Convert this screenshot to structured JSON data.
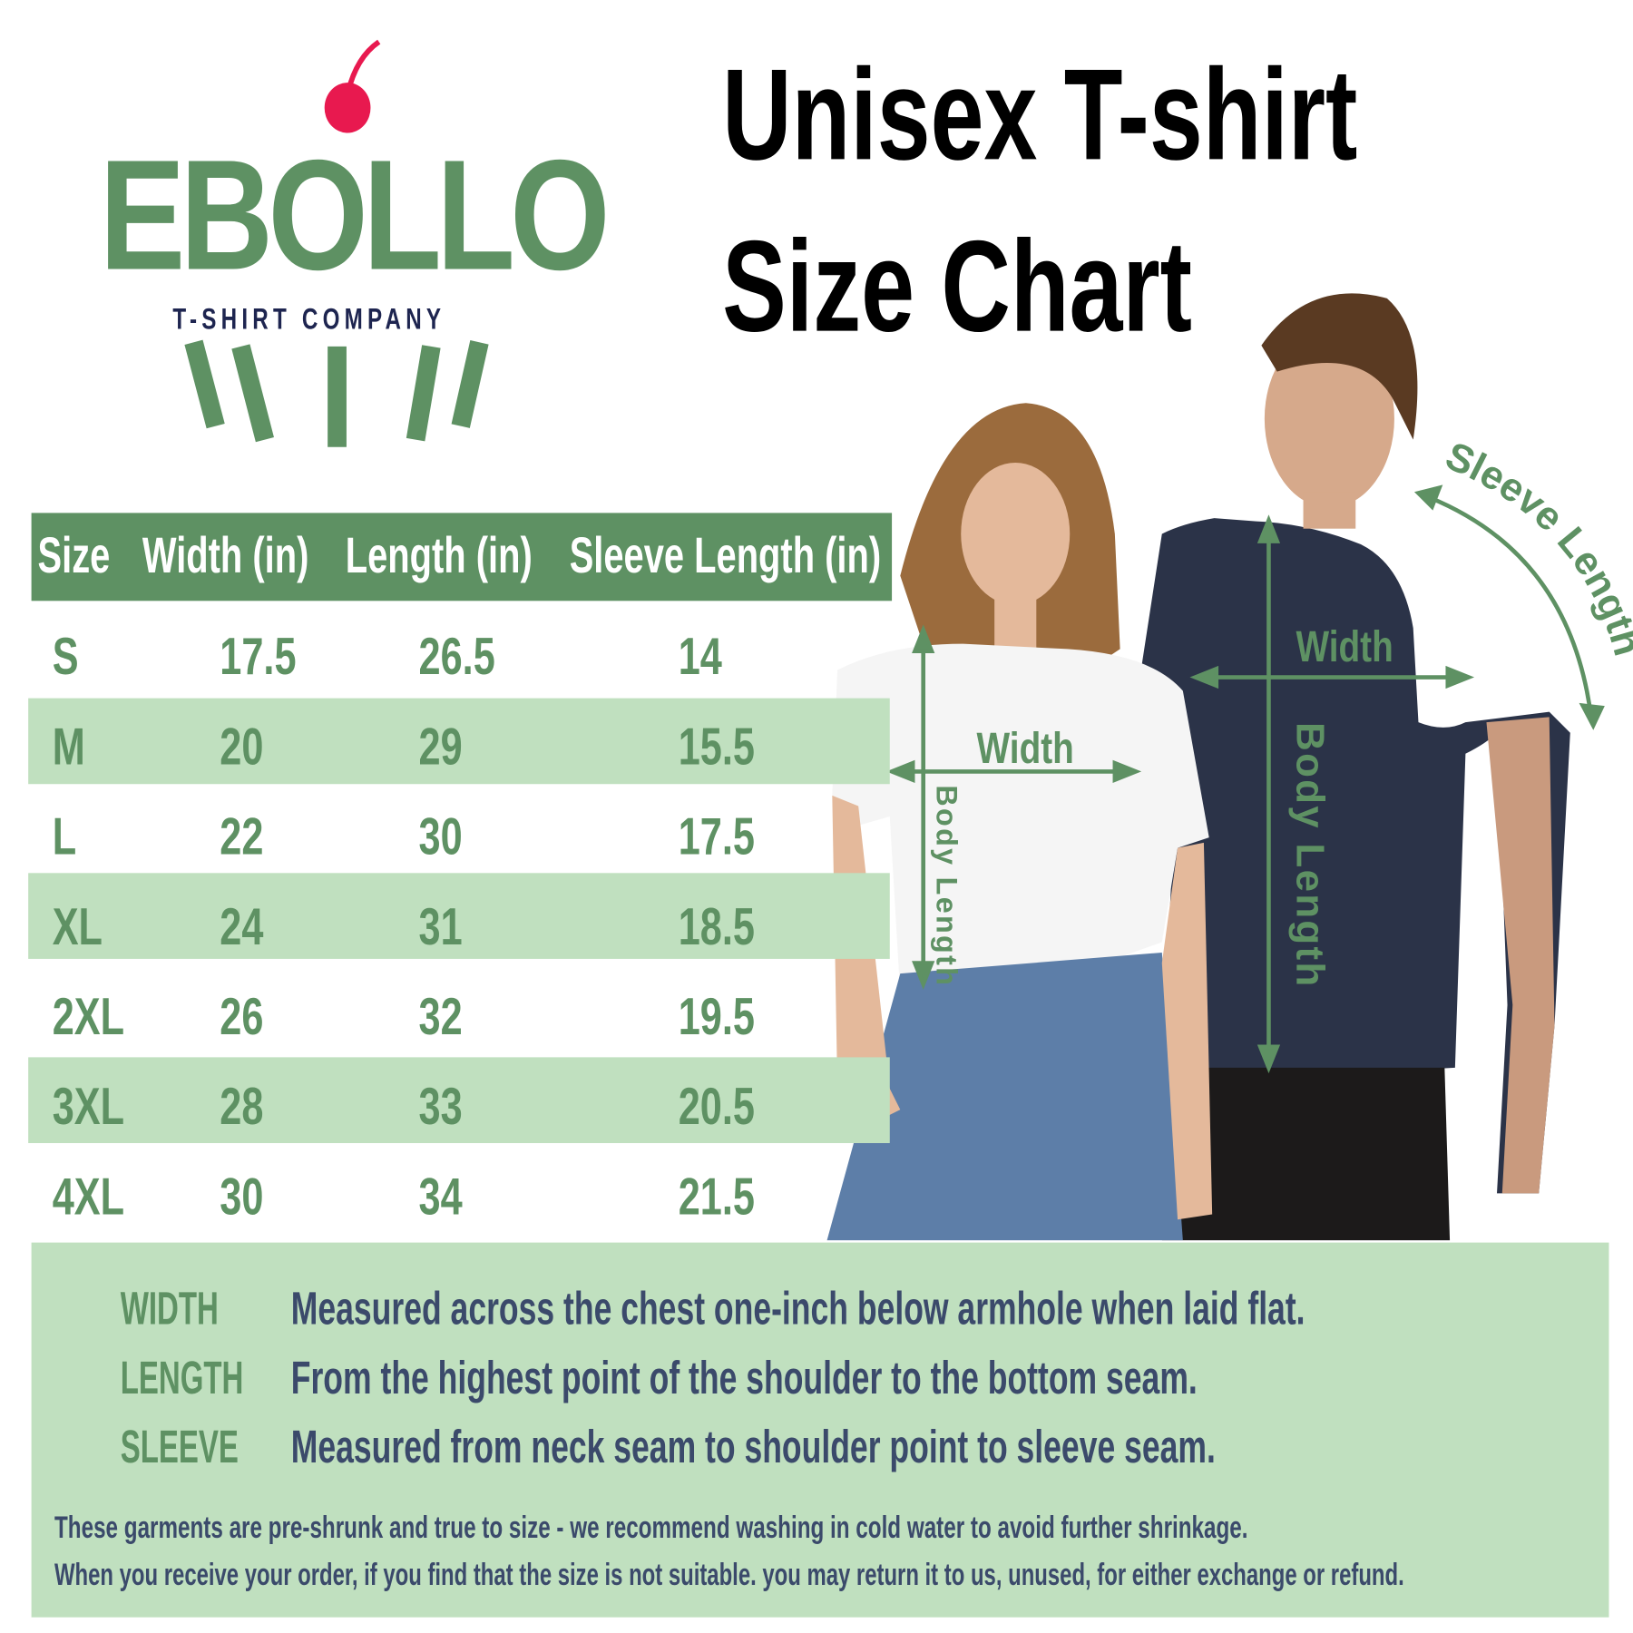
{
  "logo": {
    "brand": "EBOLLO",
    "tagline": "T-SHIRT COMPANY"
  },
  "colors": {
    "green": "#5e9163",
    "light_green": "#c0e0bf",
    "navy_text": "#3b4a6b",
    "cherry": "#e8194f"
  },
  "title": {
    "line1": "Unisex T-shirt",
    "line2": "Size Chart"
  },
  "table": {
    "headers": [
      "Size",
      "Width (in)",
      "Length (in)",
      "Sleeve Length (in)"
    ],
    "rows": [
      [
        "S",
        "17.5",
        "26.5",
        "14"
      ],
      [
        "M",
        "20",
        "29",
        "15.5"
      ],
      [
        "L",
        "22",
        "30",
        "17.5"
      ],
      [
        "XL",
        "24",
        "31",
        "18.5"
      ],
      [
        "2XL",
        "26",
        "32",
        "19.5"
      ],
      [
        "3XL",
        "28",
        "33",
        "20.5"
      ],
      [
        "4XL",
        "30",
        "34",
        "21.5"
      ]
    ]
  },
  "annotations": {
    "width": "Width",
    "body_length": "Body Length",
    "sleeve_length": "Sleeve Length"
  },
  "definitions": [
    {
      "label": "WIDTH",
      "text": "Measured across the chest one-inch below armhole when laid flat."
    },
    {
      "label": "LENGTH",
      "text": "From the highest point of the shoulder to the bottom seam."
    },
    {
      "label": "SLEEVE",
      "text": "Measured from neck seam to shoulder point to sleeve seam."
    }
  ],
  "notes": [
    "These garments are pre-shrunk and true to size - we recommend washing in cold water to avoid further shrinkage.",
    "When you receive your order, if you find that the size is not suitable. you may return it to us, unused, for either exchange or refund."
  ]
}
